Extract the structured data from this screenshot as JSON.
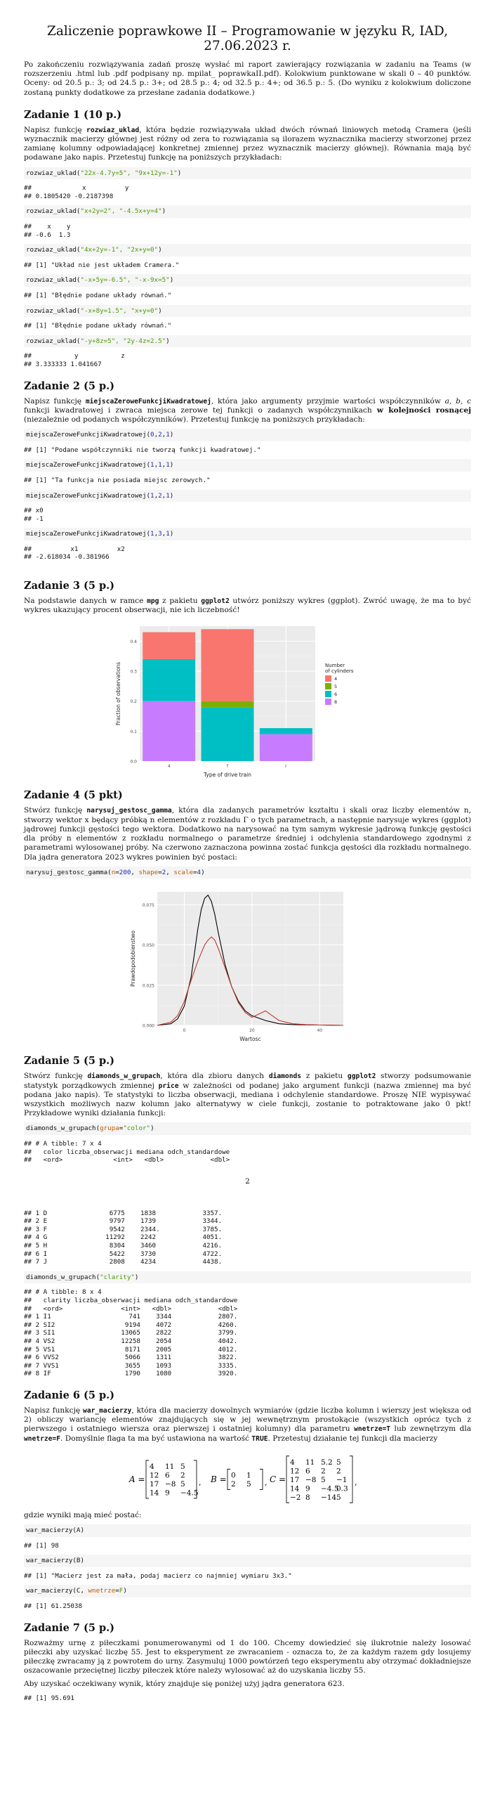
{
  "title": "Zaliczenie poprawkowe II – Programowanie w języku R, IAD, 27.06.2023 r.",
  "intro": "Po zakończeniu rozwiązywania zadań proszę wysłać mi raport zawierający rozwiązania w zadaniu na Teams (w rozszerzeniu .html lub .pdf podpisany np. mpilat_ poprawkaII.pdf). Kolokwium punktowane w skali 0 – 40 punktów. Oceny: od 20.5 p.: 3; od 24.5 p.: 3+; od 28.5 p.: 4; od 32.5 p.: 4+; od 36.5 p.: 5. (Do wyniku z kolokwium doliczone zostaną punkty dodatkowe za przesłane zadania dodatkowe.)",
  "z1": {
    "heading": "Zadanie 1 (10 p.)",
    "p1": "Napisz funkcję ",
    "fn": "rozwiaz_uklad",
    "p2": ", która będzie rozwiązywała układ dwóch równań liniowych metodą Cramera (jeśli wyznacznik macierzy głównej jest różny od zera to rozwiązania są ilorazem wyznacznika macierzy stworzonej przez zamianę kolumny odpowiadającej konkretnej zmiennej przez wyznacznik macierzy głównej). Równania mają być podawane jako napis. Przetestuj funkcję na poniższych przykładach:",
    "c1": "rozwiaz_uklad(",
    "c1s": "\"22x-4.7y=5\", \"9x+12y=-1\"",
    "c1e": ")",
    "o1": "##             x          y\n## 0.1805420 -0.2187398",
    "c2": "rozwiaz_uklad(",
    "c2s": "\"x+2y=2\", \"-4.5x+y=4\"",
    "c2e": ")",
    "o2": "##    x    y\n## -0.6  1.3",
    "c3": "rozwiaz_uklad(",
    "c3s": "\"4x+2y=-1\", \"2x+y=0\"",
    "c3e": ")",
    "o3": "## [1] \"Układ nie jest układem Cramera.\"",
    "c4": "rozwiaz_uklad(",
    "c4s": "\"-x+5y=-6.5\", \"-x-9x=5\"",
    "c4e": ")",
    "o4": "## [1] \"Błędnie podane układy równań.\"",
    "c5": "rozwiaz_uklad(",
    "c5s": "\"-x+8y=1.5\", \"x+y=0\"",
    "c5e": ")",
    "o5": "## [1] \"Błędnie podane układy równań.\"",
    "c6": "rozwiaz_uklad(",
    "c6s": "\"-y+8z=5\", \"2y-4z=2.5\"",
    "c6e": ")",
    "o6": "##           y           z\n## 3.333333 1.041667"
  },
  "z2": {
    "heading": "Zadanie 2 (5 p.)",
    "p1": "Napisz funkcję ",
    "fn": "miejscaZeroweFunkcjiKwadratowej",
    "p2": ", która jako argumenty przyjmie wartości współczynników ",
    "vars": "a, b, c",
    "p3": " funkcji kwadratowej i zwraca miejsca zerowe tej funkcji o zadanych współczynnikach ",
    "bold": "w kolejności rosnącej",
    "p4": " (niezależnie od podanych współczynników). Przetestuj funkcję na poniższych przykładach:",
    "c1": "miejscaZeroweFunkcjiKwadratowej(",
    "c1a": "0",
    "c1b": "2",
    "c1c": "1",
    "o1": "## [1] \"Podane współczynniki nie tworzą funkcji kwadratowej.\"",
    "c2": "miejscaZeroweFunkcjiKwadratowej(",
    "c2a": "1",
    "c2b": "1",
    "c2c": "1",
    "o2": "## [1] \"Ta funkcja nie posiada miejsc zerowych.\"",
    "c3": "miejscaZeroweFunkcjiKwadratowej(",
    "c3a": "1",
    "c3b": "2",
    "c3c": "1",
    "o3": "## x0\n## -1",
    "c4": "miejscaZeroweFunkcjiKwadratowej(",
    "c4a": "1",
    "c4b": "3",
    "c4c": "1",
    "o4": "##          x1          x2\n## -2.618034 -0.381966"
  },
  "z3": {
    "heading": "Zadanie 3 (5 p.)",
    "p1": "Na podstawie danych w ramce ",
    "mpg": "mpg",
    "p2": " z pakietu ",
    "pkg": "ggplot2",
    "p3": " utwórz poniższy wykres (ggplot). Zwróć uwagę, że ma to być wykres ukazujący procent obserwacji, nie ich liczebność!"
  },
  "chart_data": [
    {
      "type": "bar",
      "stacked": true,
      "title": "",
      "xlabel": "Type of drive train",
      "ylabel": "Fraction of observations",
      "ylim": [
        0,
        0.45
      ],
      "yticks": [
        "0.0",
        "0.1",
        "0.2",
        "0.3",
        "0.4"
      ],
      "categories": [
        "4",
        "f",
        "r"
      ],
      "legend_title": "Number\nof cylinders",
      "legend_position": "right",
      "series": [
        {
          "name": "4",
          "color": "#F8766D",
          "values": [
            0.09,
            0.24,
            0.0
          ]
        },
        {
          "name": "5",
          "color": "#7CAE00",
          "values": [
            0.0,
            0.02,
            0.0
          ]
        },
        {
          "name": "6",
          "color": "#00BFC4",
          "values": [
            0.14,
            0.18,
            0.02
          ]
        },
        {
          "name": "8",
          "color": "#C77CFF",
          "values": [
            0.2,
            0.0,
            0.09
          ]
        }
      ]
    },
    {
      "type": "line",
      "title": "",
      "xlabel": "Wartosc",
      "ylabel": "Prawdopodobienstwo",
      "xlim": [
        -8,
        47
      ],
      "ylim": [
        0,
        0.083
      ],
      "xticks": [
        0,
        20,
        40
      ],
      "yticks": [
        "0.000",
        "0.025",
        "0.050",
        "0.075"
      ],
      "series": [
        {
          "name": "",
          "color": "#000000",
          "x": [
            -8,
            -4,
            -2,
            0,
            2,
            3,
            4,
            5,
            6,
            7,
            8,
            9,
            10,
            12,
            14,
            16,
            18,
            20,
            24,
            28,
            32,
            36,
            40,
            44,
            47
          ],
          "y": [
            0,
            0.001,
            0.004,
            0.012,
            0.03,
            0.045,
            0.06,
            0.072,
            0.079,
            0.081,
            0.077,
            0.069,
            0.058,
            0.038,
            0.024,
            0.015,
            0.009,
            0.006,
            0.003,
            0.001,
            0.0005,
            0.0003,
            0.0002,
            0.0001,
            0
          ]
        },
        {
          "name": "",
          "color": "#C0392B",
          "x": [
            -8,
            -4,
            -2,
            0,
            2,
            4,
            6,
            7,
            8,
            9,
            10,
            12,
            14,
            16,
            18,
            20,
            22,
            24,
            26,
            28,
            32,
            36,
            40,
            44,
            47
          ],
          "y": [
            0,
            0.002,
            0.006,
            0.015,
            0.028,
            0.04,
            0.05,
            0.053,
            0.055,
            0.053,
            0.048,
            0.036,
            0.024,
            0.014,
            0.008,
            0.005,
            0.007,
            0.009,
            0.006,
            0.003,
            0.001,
            0.0005,
            0.0002,
            0.0001,
            0
          ]
        }
      ]
    }
  ],
  "z4": {
    "heading": "Zadanie 4 (5 pkt)",
    "p1": "Stwórz funkcję ",
    "fn": "narysuj_gestosc_gamma",
    "p2": ", która dla zadanych parametrów kształtu i skali oraz liczby elementów n, stworzy wektor x będący próbką n elementów z rozkładu Γ o tych parametrach, a następnie narysuje wykres (ggplot) jądrowej funkcji gęstości tego wektora. Dodatkowo na narysować na tym samym wykresie jądrową funkcję gęstości dla próby n elementów z rozkładu normalnego o parametrze średniej i odchylenia standardowego zgodnymi z parametrami wylosowanej próby. Na czerwono zaznaczona powinna zostać funkcja gęstości dla rozkładu normalnego. Dla jądra generatora 2023 wykres powinien być postaci:",
    "c1": "narysuj_gestosc_gamma(",
    "n": "n",
    "nv": "200",
    "shape": "shape",
    "sv": "2",
    "scale": "scale",
    "scv": "4",
    "ce": ")"
  },
  "z5": {
    "heading": "Zadanie 5 (5 p.)",
    "p1": "Stwórz funkcję ",
    "fn": "diamonds_w_grupach",
    "p2": ", która dla zbioru danych ",
    "ds": "diamonds",
    "p3": " z pakietu ",
    "pkg": "ggplot2",
    "p4": " stworzy podsumowanie statystyk porządkowych zmiennej ",
    "var": "price",
    "p5": " w zależności od podanej jako argument funkcji (nazwa zmiennej ma być podana jako napis). Te statystyki to liczba obserwacji, mediana i odchylenie standardowe. Proszę NIE wypisywać wszystkich możliwych nazw kolumn jako alternatywy w ciele funkcji, zostanie to potraktowane jako 0 pkt! Przykładowe wyniki działania funkcji:",
    "c1": "diamonds_w_grupach(",
    "c1g": "grupa",
    "c1s": "\"color\"",
    "c1e": ")",
    "o1a": "## # A tibble: 7 x 4\n##   color liczba_obserwacji mediana odch_standardowe\n##   <ord>             <int>   <dbl>            <dbl>",
    "o1n": "2",
    "o1b": "## 1 D                6775    1838            3357.\n## 2 E                9797    1739            3344.\n## 3 F                9542    2344.           3785.\n## 4 G               11292    2242            4051.\n## 5 H                8304    3460            4216.\n## 6 I                5422    3730            4722.\n## 7 J                2808    4234            4438.",
    "c2": "diamonds_w_grupach(",
    "c2s": "\"clarity\"",
    "c2e": ")",
    "o2": "## # A tibble: 8 x 4\n##   clarity liczba_obserwacji mediana odch_standardowe\n##   <ord>               <int>   <dbl>            <dbl>\n## 1 I1                    741    3344            2807.\n## 2 SI2                  9194    4072            4260.\n## 3 SI1                 13065    2822            3799.\n## 4 VS2                 12258    2054            4042.\n## 5 VS1                  8171    2005            4012.\n## 6 VVS2                 5066    1311            3822.\n## 7 VVS1                 3655    1093            3335.\n## 8 IF                   1790    1080            3920."
  },
  "z6": {
    "heading": "Zadanie 6 (5 p.)",
    "p1": "Napisz funkcję ",
    "fn": "war_macierzy",
    "p2": ", która dla macierzy dowolnych wymiarów (gdzie liczba kolumn i wierszy jest większa od 2) obliczy wariancję elementów znajdujących się w jej wewnętrznym prostokącie (wszystkich oprócz tych z pierwszego i ostatniego wiersza oraz pierwszej i ostatniej kolumny) dla parametru ",
    "param": "wnetrze=T",
    "p3": " lub zewnętrzym dla ",
    "param2": "wnetrze=F",
    "p4": ". Domyślnie flaga ta ma być ustawiona na wartość ",
    "true": "TRUE",
    "p5": ". Przetestuj działanie tej funkcji dla macierzy",
    "A_label": "A =",
    "A": [
      [
        "4",
        "11",
        "5"
      ],
      [
        "12",
        "6",
        "2"
      ],
      [
        "17",
        "−8",
        "5"
      ],
      [
        "14",
        "9",
        "−4.5"
      ]
    ],
    "B_label": "B =",
    "B": [
      [
        "0",
        "1"
      ],
      [
        "2",
        "5"
      ]
    ],
    "C_label": "C =",
    "C": [
      [
        "4",
        "11",
        "5.2",
        "5"
      ],
      [
        "12",
        "6",
        "2",
        "2"
      ],
      [
        "17",
        "−8",
        "5",
        "−1"
      ],
      [
        "14",
        "9",
        "−4.5",
        "0.3"
      ],
      [
        "−2",
        "8",
        "−14",
        "5"
      ]
    ],
    "p6": "gdzie wyniki mają mieć postać:",
    "c1": "war_macierzy(A)",
    "o1": "## [1] 98",
    "c2": "war_macierzy(B)",
    "o2": "## [1] \"Macierz jest za mała, podaj macierz co najmniej wymiaru 3x3.\"",
    "c3": "war_macierzy(C, ",
    "c3p": "wnetrze",
    "c3v": "F",
    "c3e": ")",
    "o3": "## [1] 61.25038"
  },
  "z7": {
    "heading": "Zadanie 7 (5 p.)",
    "p1": "Rozważmy urnę z piłeczkami ponumerowanymi od 1 do 100. Chcemy dowiedzieć się ilukrotnie należy losować piłeczki aby uzyskać liczbę 55. Jest to eksperyment ze zwracaniem - oznacza to, że za każdym razem gdy losujemy piłeczkę zwracamy ją z powrotem do urny. Zasymuluj 1000 powtórzeń tego eksperymentu aby otrzymać dokładniejsze oszacowanie przeciętnej liczby piłeczek które należy wylosować aż do uzyskania liczby 55.",
    "p2": "Aby uzyskać oczekiwany wynik, który znajduje się poniżej użyj jądra generatora 623.",
    "o1": "## [1] 95.691"
  }
}
